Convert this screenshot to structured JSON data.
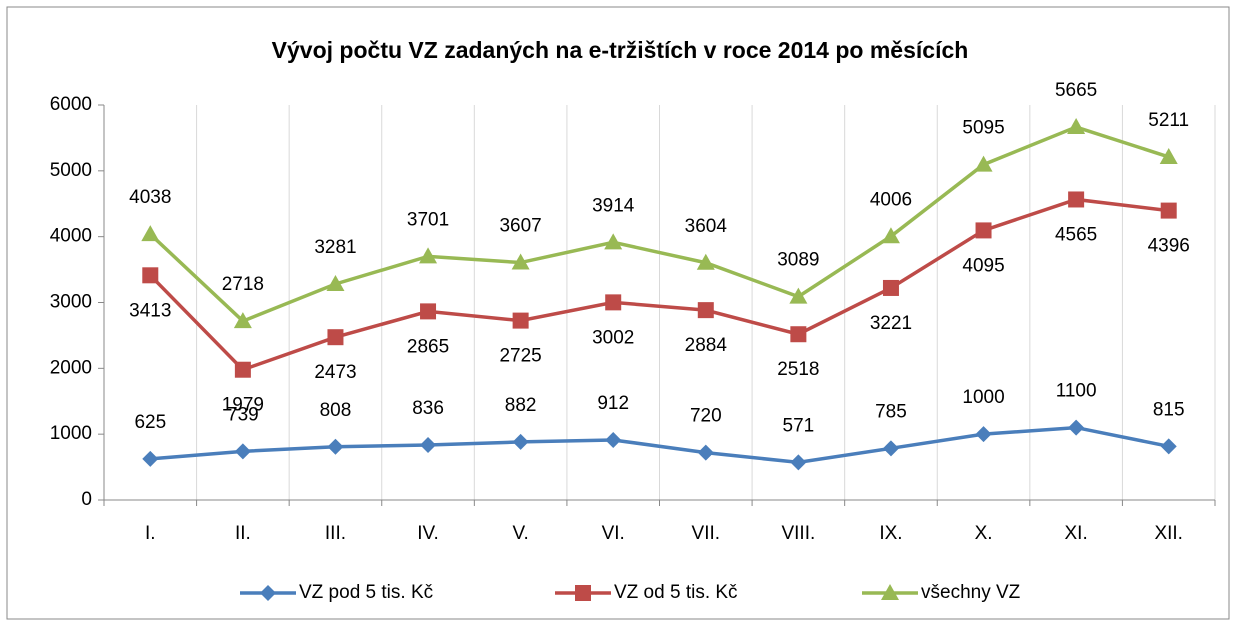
{
  "chart_data": {
    "type": "line",
    "title": "Vývoj počtu VZ zadaných na e-tržištích v roce 2014 po měsících",
    "categories": [
      "I.",
      "II.",
      "III.",
      "IV.",
      "V.",
      "VI.",
      "VII.",
      "VIII.",
      "IX.",
      "X.",
      "XI.",
      "XII."
    ],
    "series": [
      {
        "name": "VZ pod 5 tis. Kč",
        "color": "#4a7ebb",
        "marker": "diamond",
        "values": [
          625,
          739,
          808,
          836,
          882,
          912,
          720,
          571,
          785,
          1000,
          1100,
          815
        ]
      },
      {
        "name": "VZ od 5 tis. Kč",
        "color": "#be4b48",
        "marker": "square",
        "values": [
          3413,
          1979,
          2473,
          2865,
          2725,
          3002,
          2884,
          2518,
          3221,
          4095,
          4565,
          4396
        ]
      },
      {
        "name": "všechny VZ",
        "color": "#98b954",
        "marker": "triangle",
        "values": [
          4038,
          2718,
          3281,
          3701,
          3607,
          3914,
          3604,
          3089,
          4006,
          5095,
          5665,
          5211
        ]
      }
    ],
    "ylim": [
      0,
      6000
    ],
    "yticks": [
      0,
      1000,
      2000,
      3000,
      4000,
      5000,
      6000
    ],
    "legend": "bottom",
    "grid": "vertical"
  }
}
